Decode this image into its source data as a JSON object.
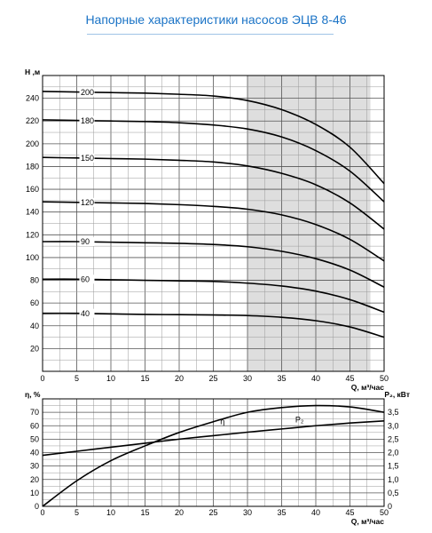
{
  "title": "Напорные характеристики насосов ЭЦВ 8-46",
  "chart_data": [
    {
      "type": "line",
      "xlabel": "Q, м³/час",
      "ylabel": "Н ,м",
      "xlim": [
        0,
        50
      ],
      "ylim": [
        0,
        260
      ],
      "x_ticks": [
        "0",
        "5",
        "10",
        "15",
        "20",
        "25",
        "30",
        "35",
        "40",
        "45",
        "50"
      ],
      "y_ticks": [
        "20",
        "40",
        "60",
        "80",
        "100",
        "120",
        "140",
        "160",
        "180",
        "200",
        "220",
        "240"
      ],
      "grid": true,
      "shaded_region_x": [
        30,
        48
      ],
      "curve_labels": [
        "200",
        "180",
        "150",
        "120",
        "90",
        "60",
        "40"
      ],
      "x": [
        0,
        5,
        10,
        15,
        20,
        25,
        30,
        35,
        40,
        45,
        50
      ],
      "series": [
        {
          "label": "200",
          "values": [
            246,
            245.5,
            245,
            244.5,
            243.5,
            242,
            238,
            230,
            217,
            197,
            165
          ]
        },
        {
          "label": "180",
          "values": [
            221,
            220.5,
            220,
            219.5,
            218.5,
            216.5,
            213,
            206,
            194,
            176,
            149
          ]
        },
        {
          "label": "150",
          "values": [
            188,
            187.5,
            187,
            186.5,
            185.5,
            184,
            180.5,
            174,
            164,
            148,
            125
          ]
        },
        {
          "label": "120",
          "values": [
            149,
            148.5,
            148,
            147.5,
            146.5,
            145,
            142.5,
            137.5,
            129,
            116,
            97
          ]
        },
        {
          "label": "90",
          "values": [
            114,
            114,
            113.5,
            113,
            112.5,
            111.5,
            109.5,
            105.5,
            99,
            89,
            74
          ]
        },
        {
          "label": "60",
          "values": [
            81,
            81,
            80.5,
            80,
            79.5,
            79,
            77.5,
            75,
            70.5,
            63,
            52
          ]
        },
        {
          "label": "40",
          "values": [
            51,
            51,
            50.5,
            50,
            49.8,
            49.5,
            49,
            47.5,
            44.5,
            39,
            30
          ]
        }
      ]
    },
    {
      "type": "line",
      "xlabel": "Q, м³/час",
      "ylabel": "η, %",
      "ylabel_right": "P₂, кВт",
      "xlim": [
        0,
        50
      ],
      "ylim": [
        0,
        80
      ],
      "ylim_right": [
        0,
        4.0
      ],
      "x_ticks": [
        "0",
        "5",
        "10",
        "15",
        "20",
        "25",
        "30",
        "35",
        "40",
        "45",
        "50"
      ],
      "y_ticks": [
        "0",
        "10",
        "20",
        "30",
        "40",
        "50",
        "60",
        "70"
      ],
      "y_ticks_right": [
        "0",
        "0,5",
        "1,0",
        "1,5",
        "2,0",
        "2,5",
        "3,0",
        "3,5"
      ],
      "grid": true,
      "x": [
        0,
        5,
        10,
        15,
        20,
        25,
        30,
        35,
        40,
        45,
        50
      ],
      "series": [
        {
          "label": "η",
          "axis": "left",
          "values": [
            0,
            19,
            34,
            45,
            55,
            63,
            70,
            73.5,
            75,
            74,
            70
          ]
        },
        {
          "label": "P₂",
          "axis": "right",
          "values": [
            1.9,
            2.05,
            2.2,
            2.35,
            2.5,
            2.63,
            2.76,
            2.88,
            3.0,
            3.1,
            3.18
          ]
        }
      ]
    }
  ]
}
